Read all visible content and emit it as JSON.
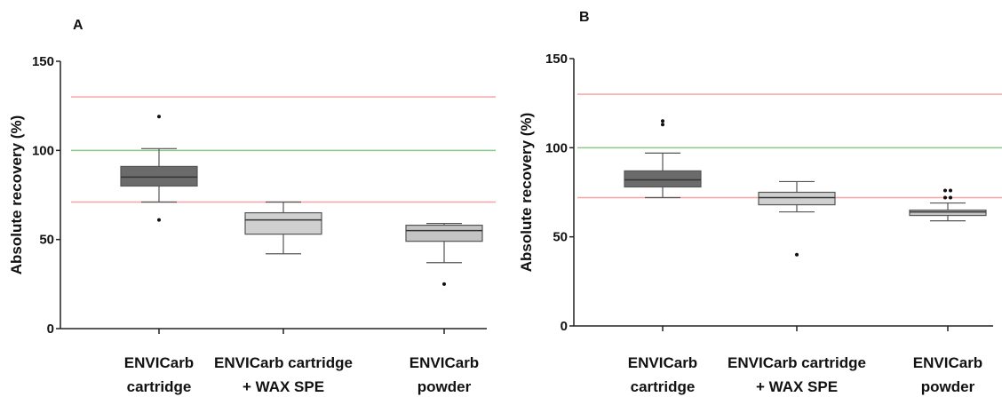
{
  "chart_data": [
    {
      "panel": "A",
      "type": "box",
      "ylabel": "Absolute recovery (%)",
      "ylim": [
        0,
        150
      ],
      "yticks": [
        0,
        50,
        100,
        150
      ],
      "reference_lines": [
        {
          "y": 130,
          "color": "#f4a6a6"
        },
        {
          "y": 100,
          "color": "#8cc98c"
        },
        {
          "y": 71,
          "color": "#f4a6a6"
        }
      ],
      "categories": [
        {
          "lines": [
            "ENVICarb",
            "cartridge"
          ],
          "fill": "#6b6b6b",
          "whisker_low": 71,
          "q1": 80,
          "median": 85,
          "q3": 91,
          "whisker_high": 101,
          "outliers": [
            119,
            61
          ]
        },
        {
          "lines": [
            "ENVICarb cartridge",
            "+ WAX SPE"
          ],
          "fill": "#d0d0d0",
          "whisker_low": 42,
          "q1": 53,
          "median": 61,
          "q3": 65,
          "whisker_high": 71,
          "outliers": []
        },
        {
          "lines": [
            "ENVICarb",
            "powder"
          ],
          "fill": "#c4c4c4",
          "whisker_low": 37,
          "q1": 49,
          "median": 55,
          "q3": 58,
          "whisker_high": 59,
          "outliers": [
            25
          ]
        }
      ]
    },
    {
      "panel": "B",
      "type": "box",
      "ylabel": "Absolute recovery (%)",
      "ylim": [
        0,
        150
      ],
      "yticks": [
        0,
        50,
        100,
        150
      ],
      "reference_lines": [
        {
          "y": 130,
          "color": "#f4a6a6"
        },
        {
          "y": 100,
          "color": "#8cc98c"
        },
        {
          "y": 72,
          "color": "#f4a6a6"
        }
      ],
      "categories": [
        {
          "lines": [
            "ENVICarb",
            "cartridge"
          ],
          "fill": "#6b6b6b",
          "whisker_low": 72,
          "q1": 78,
          "median": 82,
          "q3": 87,
          "whisker_high": 97,
          "outliers": [
            115,
            113
          ]
        },
        {
          "lines": [
            "ENVICarb cartridge",
            "+ WAX SPE"
          ],
          "fill": "#d0d0d0",
          "whisker_low": 64,
          "q1": 68,
          "median": 72,
          "q3": 75,
          "whisker_high": 81,
          "outliers": [
            40
          ]
        },
        {
          "lines": [
            "ENVICarb",
            "powder"
          ],
          "fill": "#c4c4c4",
          "whisker_low": 59,
          "q1": 62,
          "median": 64,
          "q3": 65,
          "whisker_high": 69,
          "outliers": [
            76,
            76,
            72,
            72
          ]
        }
      ]
    }
  ]
}
